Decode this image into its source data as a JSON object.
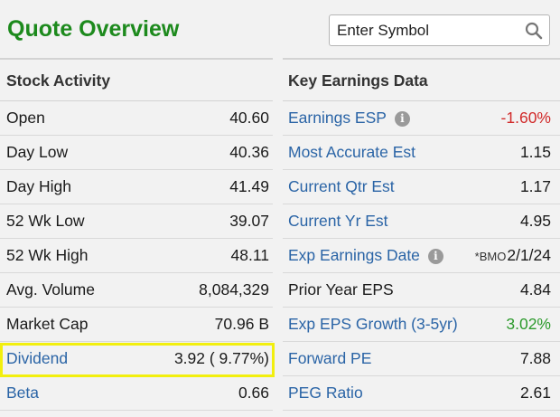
{
  "header": {
    "title": "Quote Overview",
    "search_placeholder": "Enter Symbol"
  },
  "stock_activity": {
    "heading": "Stock Activity",
    "rows": [
      {
        "label": "Open",
        "value": "40.60"
      },
      {
        "label": "Day Low",
        "value": "40.36"
      },
      {
        "label": "Day High",
        "value": "41.49"
      },
      {
        "label": "52 Wk Low",
        "value": "39.07"
      },
      {
        "label": "52 Wk High",
        "value": "48.11"
      },
      {
        "label": "Avg. Volume",
        "value": "8,084,329"
      },
      {
        "label": "Market Cap",
        "value": "70.96 B"
      },
      {
        "label": "Dividend",
        "value": "3.92 ( 9.77%)"
      },
      {
        "label": "Beta",
        "value": "0.66"
      }
    ]
  },
  "key_earnings": {
    "heading": "Key Earnings Data",
    "rows": [
      {
        "label": "Earnings ESP",
        "value": "-1.60%"
      },
      {
        "label": "Most Accurate Est",
        "value": "1.15"
      },
      {
        "label": "Current Qtr Est",
        "value": "1.17"
      },
      {
        "label": "Current Yr Est",
        "value": "4.95"
      },
      {
        "label": "Exp Earnings Date",
        "prefix": "*BMO",
        "value": "2/1/24"
      },
      {
        "label": "Prior Year EPS",
        "value": "4.84"
      },
      {
        "label": "Exp EPS Growth (3-5yr)",
        "value": "3.02%"
      },
      {
        "label": "Forward PE",
        "value": "7.88"
      },
      {
        "label": "PEG Ratio",
        "value": "2.61"
      }
    ]
  },
  "colors": {
    "title_green": "#1d8a1d",
    "link_blue": "#2a64a6",
    "negative_red": "#d12a2a",
    "positive_green": "#2c9a2c",
    "highlight_yellow": "#f2ef0e"
  },
  "icons": {
    "search": "magnifier-icon",
    "info": "info-circle-icon"
  }
}
